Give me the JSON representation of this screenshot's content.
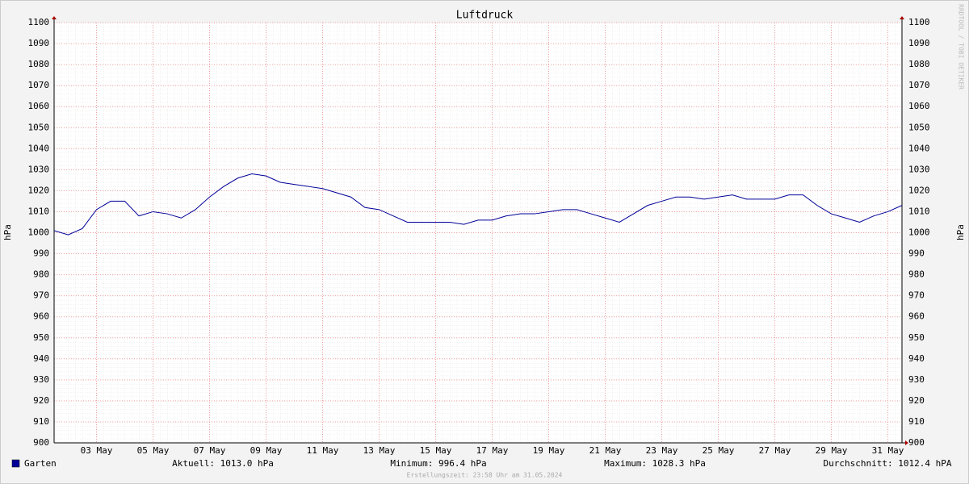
{
  "chart_data": {
    "type": "line",
    "title": "Luftdruck",
    "y_label": "hPa",
    "y2_label": "hPa",
    "watermark": "RRDTOOL / TOBI OETIKER",
    "footer": "Erstellungszeit: 23:58 Uhr am 31.05.2024",
    "stats": [
      "Aktuell: 1013.0 hPa",
      "Minimum: 996.4 hPa",
      "Maximum: 1028.3 hPa",
      "Durchschnitt: 1012.4 hPA"
    ],
    "xlim": [
      2,
      32
    ],
    "xticks": [
      {
        "value": 3.5,
        "label": "03 May"
      },
      {
        "value": 5.5,
        "label": "05 May"
      },
      {
        "value": 7.5,
        "label": "07 May"
      },
      {
        "value": 9.5,
        "label": "09 May"
      },
      {
        "value": 11.5,
        "label": "11 May"
      },
      {
        "value": 13.5,
        "label": "13 May"
      },
      {
        "value": 15.5,
        "label": "15 May"
      },
      {
        "value": 17.5,
        "label": "17 May"
      },
      {
        "value": 19.5,
        "label": "19 May"
      },
      {
        "value": 21.5,
        "label": "21 May"
      },
      {
        "value": 23.5,
        "label": "23 May"
      },
      {
        "value": 25.5,
        "label": "25 May"
      },
      {
        "value": 27.5,
        "label": "27 May"
      },
      {
        "value": 29.5,
        "label": "29 May"
      },
      {
        "value": 31.5,
        "label": "31 May"
      }
    ],
    "ylim": [
      900,
      1100
    ],
    "yticks": [
      900,
      910,
      920,
      930,
      940,
      950,
      960,
      970,
      980,
      990,
      1000,
      1010,
      1020,
      1030,
      1040,
      1050,
      1060,
      1070,
      1080,
      1090,
      1100
    ],
    "grid": true,
    "x": [
      2,
      2.5,
      3,
      3.5,
      4,
      4.5,
      5,
      5.5,
      6,
      6.5,
      7,
      7.5,
      8,
      8.5,
      9,
      9.5,
      10,
      10.5,
      11,
      11.5,
      12,
      12.5,
      13,
      13.5,
      14,
      14.5,
      15,
      15.5,
      16,
      16.5,
      17,
      17.5,
      18,
      18.5,
      19,
      19.5,
      20,
      20.5,
      21,
      21.5,
      22,
      22.5,
      23,
      23.5,
      24,
      24.5,
      25,
      25.5,
      26,
      26.5,
      27,
      27.5,
      28,
      28.5,
      29,
      29.5,
      30,
      30.5,
      31,
      31.5,
      32
    ],
    "series": [
      {
        "name": "Garten",
        "color": "#000099",
        "values": [
          1001,
          999,
          1002,
          1011,
          1015,
          1015,
          1008,
          1010,
          1009,
          1007,
          1011,
          1017,
          1022,
          1026,
          1028,
          1027,
          1024,
          1023,
          1022,
          1021,
          1019,
          1017,
          1012,
          1011,
          1008,
          1005,
          1005,
          1005,
          1005,
          1004,
          1006,
          1006,
          1008,
          1009,
          1009,
          1010,
          1011,
          1011,
          1009,
          1007,
          1005,
          1009,
          1013,
          1015,
          1017,
          1017,
          1016,
          1017,
          1018,
          1016,
          1016,
          1016,
          1018,
          1018,
          1013,
          1009,
          1007,
          1005,
          1008,
          1010,
          1013
        ]
      }
    ]
  }
}
